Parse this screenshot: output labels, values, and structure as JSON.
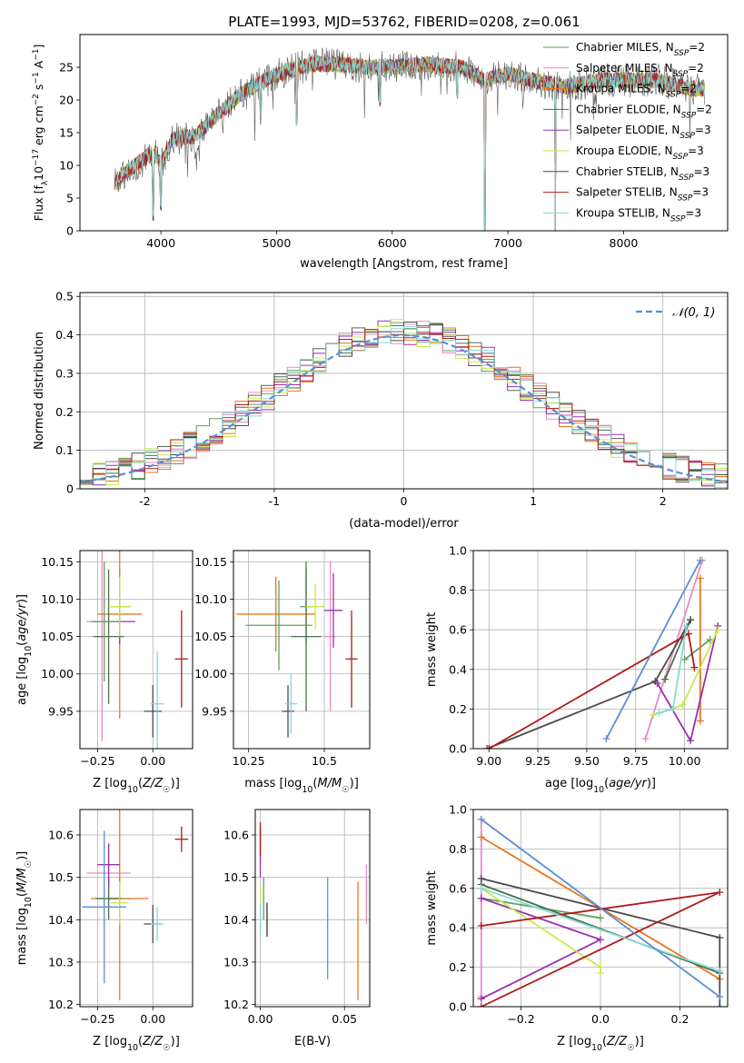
{
  "figure_title": "PLATE=1993, MJD=53762, FIBERID=0208, z=0.061",
  "series_styles": [
    {
      "label": "Chabrier MILES, N_SSP=2",
      "color": "#5da05d"
    },
    {
      "label": "Salpeter MILES, N_SSP=2",
      "color": "#e78ac3"
    },
    {
      "label": "Kroupa MILES, N_SSP=2",
      "color": "#e8761d"
    },
    {
      "label": "Chabrier ELODIE, N_SSP=2",
      "color": "#4c6f4c"
    },
    {
      "label": "Salpeter ELODIE, N_SSP=3",
      "color": "#9a2fb0"
    },
    {
      "label": "Kroupa ELODIE, N_SSP=3",
      "color": "#c8e84a"
    },
    {
      "label": "Chabrier STELIB, N_SSP=3",
      "color": "#4a4a4a"
    },
    {
      "label": "Salpeter STELIB, N_SSP=3",
      "color": "#b01a1a"
    },
    {
      "label": "Kroupa STELIB, N_SSP=3",
      "color": "#86d9d9"
    }
  ],
  "chart_data": [
    {
      "type": "line",
      "panel": "spectrum",
      "xlabel": "wavelength [Angstrom, rest frame]",
      "ylabel": "Flux [f_λ10^-17 erg cm^-2 s^-1 A^-1]",
      "xlim": [
        3300,
        8900
      ],
      "ylim": [
        0,
        30
      ],
      "xticks": [
        4000,
        5000,
        6000,
        7000,
        8000
      ],
      "yticks": [
        0,
        5,
        10,
        15,
        20,
        25
      ],
      "legend_position": "upper-right",
      "x_range": [
        3600,
        8700
      ],
      "continuum_anchors": [
        [
          3600,
          7
        ],
        [
          3700,
          9
        ],
        [
          3850,
          11
        ],
        [
          3950,
          12
        ],
        [
          4000,
          10
        ],
        [
          4100,
          14
        ],
        [
          4300,
          14.5
        ],
        [
          4500,
          18
        ],
        [
          4700,
          21
        ],
        [
          4900,
          23
        ],
        [
          5100,
          24.5
        ],
        [
          5300,
          25.5
        ],
        [
          5500,
          25.5
        ],
        [
          5800,
          25
        ],
        [
          6000,
          25
        ],
        [
          6300,
          25.5
        ],
        [
          6600,
          25
        ],
        [
          6800,
          23
        ],
        [
          7000,
          24
        ],
        [
          7200,
          23
        ],
        [
          7500,
          22
        ],
        [
          7800,
          23
        ],
        [
          8000,
          23
        ],
        [
          8300,
          23
        ],
        [
          8500,
          22
        ],
        [
          8700,
          21.5
        ]
      ],
      "dips": [
        [
          3933,
          1.5
        ],
        [
          4000,
          3
        ],
        [
          4861,
          16
        ],
        [
          5175,
          16
        ],
        [
          5893,
          19
        ],
        [
          6563,
          20
        ],
        [
          6800,
          0
        ],
        [
          7410,
          0
        ]
      ],
      "series": [
        {
          "name": "Chabrier MILES, N_SSP=2"
        },
        {
          "name": "Salpeter MILES, N_SSP=2"
        },
        {
          "name": "Kroupa MILES, N_SSP=2"
        },
        {
          "name": "Chabrier ELODIE, N_SSP=2"
        },
        {
          "name": "Salpeter ELODIE, N_SSP=3"
        },
        {
          "name": "Kroupa ELODIE, N_SSP=3"
        },
        {
          "name": "Chabrier STELIB, N_SSP=3"
        },
        {
          "name": "Salpeter STELIB, N_SSP=3"
        },
        {
          "name": "Kroupa STELIB, N_SSP=3"
        }
      ]
    },
    {
      "type": "bar",
      "panel": "residual-histogram",
      "xlabel": "(data-model)/error",
      "ylabel": "Normed distribution",
      "xlim": [
        -2.5,
        2.5
      ],
      "ylim": [
        0,
        0.51
      ],
      "xticks": [
        -2,
        -1,
        0,
        1,
        2
      ],
      "yticks": [
        0.0,
        0.1,
        0.2,
        0.3,
        0.4,
        0.5
      ],
      "grid": true,
      "legend_position": "upper-right",
      "reference_curve": {
        "label": "𝒩(0, 1)",
        "mean": 0,
        "sigma": 1,
        "color": "#5b8ed6"
      },
      "bin_width": 0.1,
      "bin_start": -2.5
    },
    {
      "type": "scatter",
      "panel": "age-vs-Z",
      "xlabel": "Z [log10(Z/Z☉)]",
      "ylabel": "age [log10(age/yr)]",
      "xlim": [
        -0.33,
        0.18
      ],
      "ylim": [
        9.9,
        10.165
      ],
      "xticks": [
        -0.25,
        0.0
      ],
      "xtick_labels": [
        "−0.25",
        "0.00"
      ],
      "yticks": [
        9.95,
        10.0,
        10.05,
        10.1,
        10.15
      ],
      "yticklabels": [
        "9.95",
        "10.00",
        "10.05",
        "10.10",
        "10.15"
      ],
      "grid": true,
      "points": [
        {
          "c": 0,
          "x": -0.15,
          "y": 10.09,
          "xe": 0.05,
          "ye": 0.05
        },
        {
          "c": 1,
          "x": -0.23,
          "y": 10.07,
          "xe": 0.07,
          "ye": 0.16
        },
        {
          "c": 2,
          "x": -0.15,
          "y": 10.08,
          "xe": 0.1,
          "ye": 0.14
        },
        {
          "c": 3,
          "x": -0.2,
          "y": 10.05,
          "xe": 0.07,
          "ye": 0.09
        },
        {
          "c": 4,
          "x": -0.15,
          "y": 10.07,
          "xe": 0.07,
          "ye": 0.03
        },
        {
          "c": 5,
          "x": -0.15,
          "y": 10.09,
          "xe": 0.05,
          "ye": 0.04
        },
        {
          "c": 6,
          "x": 0.0,
          "y": 9.95,
          "xe": 0.04,
          "ye": 0.035
        },
        {
          "c": 7,
          "x": 0.13,
          "y": 10.02,
          "xe": 0.03,
          "ye": 0.065
        },
        {
          "c": 8,
          "x": 0.02,
          "y": 9.96,
          "xe": 0.03,
          "ye": 0.07
        },
        {
          "c": 0,
          "x": -0.22,
          "y": 10.07,
          "xe": 0.06,
          "ye": 0.08
        }
      ]
    },
    {
      "type": "scatter",
      "panel": "age-vs-mass",
      "xlabel": "mass [log10(M/M☉)]",
      "ylabel": "",
      "xlim": [
        10.2,
        10.65
      ],
      "ylim": [
        9.9,
        10.165
      ],
      "xticks": [
        10.25,
        10.5
      ],
      "yticks": [
        9.95,
        10.0,
        10.05,
        10.1,
        10.15
      ],
      "yticklabels": [
        "9.95",
        "10.00",
        "10.05",
        "10.10",
        "10.15"
      ],
      "grid": true,
      "points": [
        {
          "c": 0,
          "x": 10.44,
          "y": 10.09,
          "xe": 0.02,
          "ye": 0.05
        },
        {
          "c": 1,
          "x": 10.52,
          "y": 10.05,
          "xe": 0.02,
          "ye": 0.1
        },
        {
          "c": 2,
          "x": 10.34,
          "y": 10.08,
          "xe": 0.13,
          "ye": 0.05
        },
        {
          "c": 3,
          "x": 10.44,
          "y": 10.05,
          "xe": 0.05,
          "ye": 0.1
        },
        {
          "c": 4,
          "x": 10.53,
          "y": 10.085,
          "xe": 0.03,
          "ye": 0.05
        },
        {
          "c": 5,
          "x": 10.47,
          "y": 10.09,
          "xe": 0.03,
          "ye": 0.03
        },
        {
          "c": 6,
          "x": 10.38,
          "y": 9.95,
          "xe": 0.02,
          "ye": 0.035
        },
        {
          "c": 7,
          "x": 10.59,
          "y": 10.02,
          "xe": 0.02,
          "ye": 0.065
        },
        {
          "c": 8,
          "x": 10.39,
          "y": 9.96,
          "xe": 0.02,
          "ye": 0.04
        },
        {
          "c": 0,
          "x": 10.35,
          "y": 10.065,
          "xe": 0.11,
          "ye": 0.06
        }
      ]
    },
    {
      "type": "line",
      "panel": "mass-weight-vs-age",
      "xlabel": "age [log10(age/yr)]",
      "ylabel": "mass weight",
      "xlim": [
        8.92,
        10.22
      ],
      "ylim": [
        0,
        1.0
      ],
      "xticks": [
        9.0,
        9.25,
        9.5,
        9.75,
        10.0
      ],
      "xticklabels": [
        "9.00",
        "9.25",
        "9.50",
        "9.75",
        "10.00"
      ],
      "yticks": [
        0.0,
        0.2,
        0.4,
        0.6,
        0.8,
        1.0
      ],
      "yticklabels": [
        "0.0",
        "0.2",
        "0.4",
        "0.6",
        "0.8",
        "1.0"
      ],
      "grid": true,
      "series": [
        {
          "c": 0,
          "points": [
            [
              10.0,
              0.45
            ],
            [
              10.13,
              0.55
            ]
          ]
        },
        {
          "c": 1,
          "points": [
            [
              9.8,
              0.05
            ],
            [
              10.09,
              0.95
            ]
          ]
        },
        {
          "c": 2,
          "points": [
            [
              10.08,
              0.14
            ],
            [
              10.08,
              0.86
            ]
          ]
        },
        {
          "c": 3,
          "points": [
            [
              10.03,
              0.65
            ],
            [
              9.9,
              0.35
            ]
          ]
        },
        {
          "c": 4,
          "points": [
            [
              9.86,
              0.33
            ],
            [
              10.03,
              0.04
            ],
            [
              10.17,
              0.62
            ]
          ]
        },
        {
          "c": 5,
          "points": [
            [
              9.84,
              0.17
            ],
            [
              9.99,
              0.22
            ],
            [
              10.17,
              0.6
            ]
          ]
        },
        {
          "c": 6,
          "points": [
            [
              8.99,
              0.0
            ],
            [
              9.85,
              0.34
            ],
            [
              10.03,
              0.65
            ]
          ]
        },
        {
          "c": 7,
          "points": [
            [
              9.0,
              0.0
            ],
            [
              10.02,
              0.58
            ],
            [
              10.05,
              0.41
            ]
          ]
        },
        {
          "c": 8,
          "points": [
            [
              9.87,
              0.18
            ],
            [
              9.94,
              0.2
            ],
            [
              10.01,
              0.62
            ]
          ]
        },
        {
          "c": 1,
          "points": [
            [
              9.6,
              0.05
            ],
            [
              10.08,
              0.95
            ]
          ],
          "color_override": "#5b8ed6"
        }
      ]
    },
    {
      "type": "scatter",
      "panel": "mass-vs-Z",
      "xlabel": "Z [log10(Z/Z☉)]",
      "ylabel": "mass [log10(M/M☉)]",
      "xlim": [
        -0.33,
        0.18
      ],
      "ylim": [
        10.195,
        10.66
      ],
      "xticks": [
        -0.25,
        0.0
      ],
      "xtick_labels": [
        "−0.25",
        "0.00"
      ],
      "yticks": [
        10.2,
        10.3,
        10.4,
        10.5,
        10.6
      ],
      "grid": true,
      "points": [
        {
          "c": 0,
          "x": -0.15,
          "y": 10.45,
          "xe": 0.05,
          "ye": 0.05
        },
        {
          "c": 1,
          "x": -0.2,
          "y": 10.51,
          "xe": 0.1,
          "ye": 0.07
        },
        {
          "c": 2,
          "x": -0.15,
          "y": 10.45,
          "xe": 0.13,
          "ye": 0.24
        },
        {
          "c": 3,
          "x": -0.2,
          "y": 10.45,
          "xe": 0.06,
          "ye": 0.05
        },
        {
          "c": 4,
          "x": -0.2,
          "y": 10.53,
          "xe": 0.05,
          "ye": 0.05
        },
        {
          "c": 5,
          "x": -0.15,
          "y": 10.44,
          "xe": 0.04,
          "ye": 0.05
        },
        {
          "c": 6,
          "x": 0.0,
          "y": 10.39,
          "xe": 0.04,
          "ye": 0.045
        },
        {
          "c": 7,
          "x": 0.13,
          "y": 10.59,
          "xe": 0.03,
          "ye": 0.03
        },
        {
          "c": 8,
          "x": 0.02,
          "y": 10.39,
          "xe": 0.03,
          "ye": 0.04
        },
        {
          "c": 0,
          "x": -0.22,
          "y": 10.43,
          "xe": 0.1,
          "ye": 0.18,
          "color_override": "#5b8ed6"
        }
      ]
    },
    {
      "type": "scatter",
      "panel": "mass-vs-EBV",
      "xlabel": "E(B-V)",
      "ylabel": "",
      "xlim": [
        -0.003,
        0.065
      ],
      "ylim": [
        10.195,
        10.66
      ],
      "xticks": [
        0.0,
        0.05
      ],
      "xticklabels": [
        "0.00",
        "0.05"
      ],
      "yticks": [
        10.2,
        10.3,
        10.4,
        10.5,
        10.6
      ],
      "grid": true,
      "points": [
        {
          "c": 0,
          "x": 0.002,
          "y": 10.45,
          "xe": 0,
          "ye": 0.05
        },
        {
          "c": 1,
          "x": 0.063,
          "y": 10.46,
          "xe": 0,
          "ye": 0.07
        },
        {
          "c": 2,
          "x": 0.058,
          "y": 10.35,
          "xe": 0,
          "ye": 0.14
        },
        {
          "c": 3,
          "x": 0.004,
          "y": 10.4,
          "xe": 0,
          "ye": 0.04
        },
        {
          "c": 4,
          "x": 0.0,
          "y": 10.56,
          "xe": 0,
          "ye": 0.06
        },
        {
          "c": 5,
          "x": 0.0,
          "y": 10.44,
          "xe": 0,
          "ye": 0.04
        },
        {
          "c": 6,
          "x": 0.004,
          "y": 10.4,
          "xe": 0,
          "ye": 0.04
        },
        {
          "c": 7,
          "x": 0.0,
          "y": 10.59,
          "xe": 0,
          "ye": 0.04
        },
        {
          "c": 8,
          "x": 0.0,
          "y": 10.4,
          "xe": 0,
          "ye": 0.04
        },
        {
          "c": 0,
          "x": 0.04,
          "y": 10.38,
          "xe": 0,
          "ye": 0.12,
          "color_override": "#5b8ed6"
        }
      ]
    },
    {
      "type": "line",
      "panel": "mass-weight-vs-Z",
      "xlabel": "Z [log10(Z/Z☉)]",
      "ylabel": "mass weight",
      "xlim": [
        -0.32,
        0.32
      ],
      "ylim": [
        0,
        1.0
      ],
      "xticks": [
        -0.2,
        0.0,
        0.2
      ],
      "xtick_labels": [
        "−0.2",
        "0.0",
        "0.2"
      ],
      "yticks": [
        0.0,
        0.2,
        0.4,
        0.6,
        0.8,
        1.0
      ],
      "yticklabels": [
        "0.0",
        "0.2",
        "0.4",
        "0.6",
        "0.8",
        "1.0"
      ],
      "grid": true,
      "series": [
        {
          "c": 0,
          "points": [
            [
              -0.3,
              0.55
            ],
            [
              0.0,
              0.45
            ]
          ]
        },
        {
          "c": 1,
          "points": [
            [
              -0.3,
              0.05
            ],
            [
              -0.3,
              0.95
            ]
          ]
        },
        {
          "c": 2,
          "points": [
            [
              -0.3,
              0.86
            ],
            [
              0.3,
              0.14
            ]
          ]
        },
        {
          "c": 3,
          "points": [
            [
              -0.3,
              0.62
            ],
            [
              0.3,
              0.17
            ]
          ]
        },
        {
          "c": 4,
          "points": [
            [
              -0.3,
              0.04
            ],
            [
              0.0,
              0.34
            ],
            [
              -0.3,
              0.55
            ]
          ]
        },
        {
          "c": 5,
          "points": [
            [
              -0.3,
              0.6
            ],
            [
              0.0,
              0.2
            ],
            [
              0.0,
              0.17
            ]
          ]
        },
        {
          "c": 6,
          "points": [
            [
              -0.3,
              0.65
            ],
            [
              0.3,
              0.35
            ],
            [
              0.3,
              0.0
            ]
          ]
        },
        {
          "c": 7,
          "points": [
            [
              -0.3,
              0.0
            ],
            [
              0.3,
              0.58
            ],
            [
              -0.3,
              0.41
            ]
          ]
        },
        {
          "c": 8,
          "points": [
            [
              -0.3,
              0.6
            ],
            [
              0.3,
              0.18
            ]
          ]
        },
        {
          "c": 1,
          "points": [
            [
              -0.3,
              0.95
            ],
            [
              0.3,
              0.05
            ]
          ],
          "color_override": "#5b8ed6"
        }
      ]
    }
  ]
}
